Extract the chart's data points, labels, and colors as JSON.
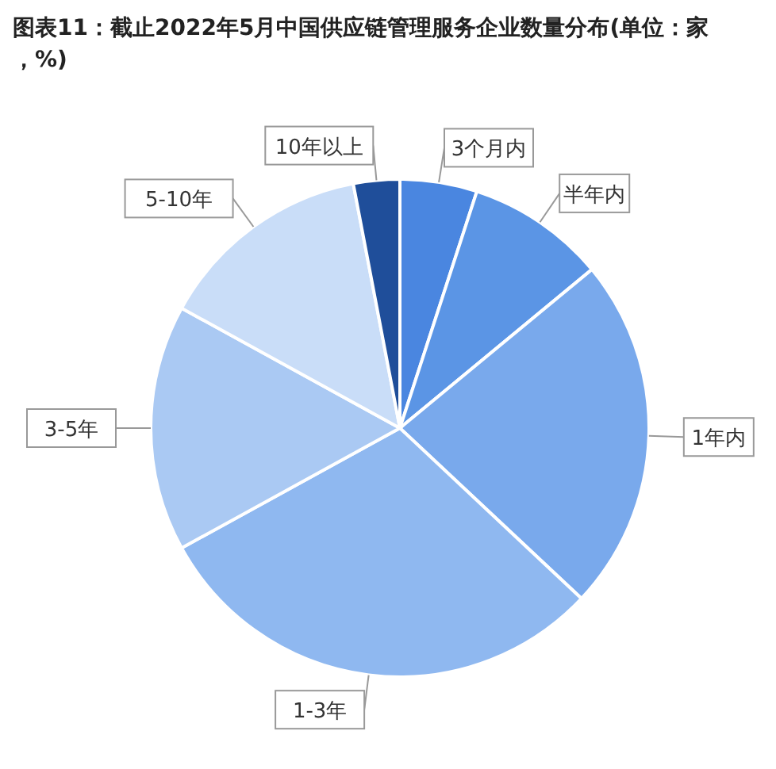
{
  "chart_data": {
    "type": "pie",
    "title": "图表11：截止2022年5月中国供应链管理服务企业数量分布(单位：家，%)",
    "categories": [
      "3个月内",
      "半年内",
      "1年内",
      "1-3年",
      "3-5年",
      "5-10年",
      "10年以上"
    ],
    "values": [
      5,
      9,
      23,
      30,
      16,
      14,
      3
    ],
    "colors": [
      "#4a86e0",
      "#5b95e5",
      "#79a9ec",
      "#8fb8f0",
      "#aac9f3",
      "#c9ddf8",
      "#1f4e9a"
    ],
    "legend": false
  }
}
